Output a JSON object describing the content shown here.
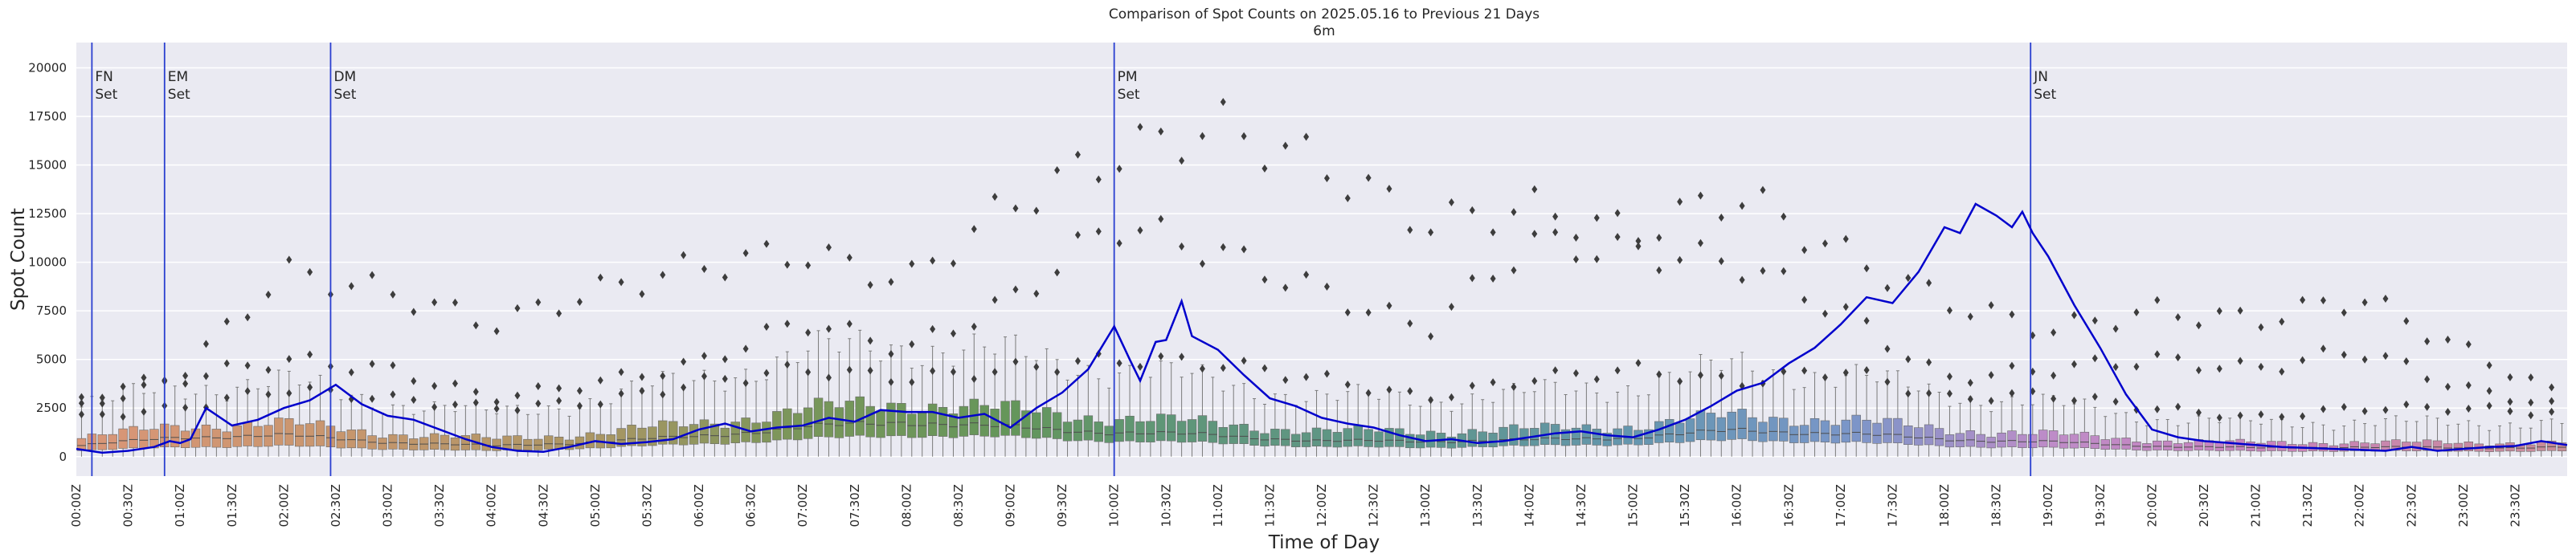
{
  "chart_data": {
    "type": "box+line",
    "title": "Comparison of Spot Counts on 2025.05.16 to Previous 21 Days",
    "subtitle": "6m",
    "xlabel": "Time of Day",
    "ylabel": "Spot Count",
    "ylim": [
      -1000,
      21300
    ],
    "y_ticks": [
      0,
      2500,
      5000,
      7500,
      10000,
      12500,
      15000,
      17500,
      20000
    ],
    "y_tick_labels": [
      "0",
      "2500",
      "5000",
      "7500",
      "10000",
      "12500",
      "15000",
      "17500",
      "20000"
    ],
    "x_range_hours": [
      0,
      24
    ],
    "x_tick_labels": [
      "00:00Z",
      "00:30Z",
      "01:00Z",
      "01:30Z",
      "02:00Z",
      "02:30Z",
      "03:00Z",
      "03:30Z",
      "04:00Z",
      "04:30Z",
      "05:00Z",
      "05:30Z",
      "06:00Z",
      "06:30Z",
      "07:00Z",
      "07:30Z",
      "08:00Z",
      "08:30Z",
      "09:00Z",
      "09:30Z",
      "10:00Z",
      "10:30Z",
      "11:00Z",
      "11:30Z",
      "12:00Z",
      "12:30Z",
      "13:00Z",
      "13:30Z",
      "14:00Z",
      "14:30Z",
      "15:00Z",
      "15:30Z",
      "16:00Z",
      "16:30Z",
      "17:00Z",
      "17:30Z",
      "18:00Z",
      "18:30Z",
      "19:00Z",
      "19:30Z",
      "20:00Z",
      "20:30Z",
      "21:00Z",
      "21:30Z",
      "22:00Z",
      "22:30Z",
      "23:00Z",
      "23:30Z"
    ],
    "grid": true,
    "background_color": "#eaeaf2",
    "line_color": "#0000cc",
    "event_line_color": "#2a3fd0",
    "flier_color": "#3d3d3d",
    "events": [
      {
        "label": "FN\nSet",
        "hour": 0.15
      },
      {
        "label": "EM\nSet",
        "hour": 0.85
      },
      {
        "label": "DM\nSet",
        "hour": 2.45
      },
      {
        "label": "PM\nSet",
        "hour": 10.0
      },
      {
        "label": "JN\nSet",
        "hour": 18.83
      }
    ],
    "box_summary_by_hour": {
      "hours": [
        0,
        1,
        2,
        3,
        4,
        5,
        6,
        7,
        8,
        9,
        10,
        11,
        12,
        13,
        14,
        15,
        16,
        17,
        18,
        19,
        20,
        21,
        22,
        23,
        24
      ],
      "median": [
        550,
        1000,
        1100,
        750,
        550,
        750,
        1050,
        1500,
        1800,
        1500,
        1250,
        1100,
        800,
        800,
        850,
        1000,
        1350,
        1200,
        900,
        750,
        550,
        450,
        500,
        450,
        500
      ],
      "q1": [
        300,
        500,
        550,
        400,
        300,
        450,
        650,
        900,
        1100,
        1000,
        800,
        700,
        500,
        480,
        550,
        650,
        850,
        750,
        550,
        450,
        350,
        280,
        300,
        280,
        300
      ],
      "q3": [
        900,
        1600,
        1700,
        1200,
        900,
        1200,
        1700,
        2400,
        2800,
        2400,
        2000,
        1700,
        1300,
        1300,
        1400,
        1600,
        2100,
        1900,
        1400,
        1150,
        850,
        700,
        750,
        700,
        750
      ],
      "whisker": [
        2500,
        3600,
        3800,
        2800,
        2200,
        2900,
        4000,
        5200,
        5800,
        5200,
        4500,
        3800,
        3000,
        3000,
        3200,
        3700,
        4600,
        4200,
        3200,
        2700,
        2000,
        1700,
        1800,
        1700,
        1800
      ]
    },
    "series": [
      {
        "name": "2025.05.16",
        "x": [
          0,
          0.25,
          0.5,
          0.75,
          0.9,
          1.0,
          1.1,
          1.25,
          1.5,
          1.75,
          2.0,
          2.25,
          2.5,
          2.75,
          3.0,
          3.25,
          3.5,
          3.75,
          4.0,
          4.25,
          4.5,
          4.75,
          5.0,
          5.25,
          5.5,
          5.75,
          6.0,
          6.25,
          6.5,
          6.75,
          7.0,
          7.25,
          7.5,
          7.75,
          8.0,
          8.25,
          8.5,
          8.75,
          9.0,
          9.25,
          9.5,
          9.75,
          10.0,
          10.15,
          10.25,
          10.4,
          10.5,
          10.65,
          10.75,
          11.0,
          11.25,
          11.5,
          11.75,
          12.0,
          12.25,
          12.5,
          12.75,
          13.0,
          13.25,
          13.5,
          13.75,
          14.0,
          14.25,
          14.5,
          14.75,
          15.0,
          15.25,
          15.5,
          15.75,
          16.0,
          16.25,
          16.5,
          16.75,
          17.0,
          17.25,
          17.5,
          17.75,
          18.0,
          18.15,
          18.3,
          18.5,
          18.65,
          18.75,
          18.85,
          19.0,
          19.25,
          19.5,
          19.75,
          20.0,
          20.25,
          20.5,
          20.75,
          21.0,
          21.25,
          21.5,
          21.75,
          22.0,
          22.25,
          22.5,
          22.75,
          23.0,
          23.25,
          23.5,
          23.75,
          24.0
        ],
        "y": [
          400,
          200,
          300,
          500,
          800,
          700,
          900,
          2500,
          1600,
          1900,
          2500,
          2900,
          3700,
          2700,
          2100,
          1900,
          1400,
          900,
          500,
          300,
          250,
          500,
          800,
          650,
          750,
          900,
          1400,
          1700,
          1300,
          1500,
          1600,
          2000,
          1800,
          2400,
          2300,
          2300,
          2000,
          2200,
          1500,
          2500,
          3300,
          4500,
          6700,
          5000,
          3900,
          5900,
          6000,
          8000,
          6200,
          5500,
          4200,
          3000,
          2600,
          2000,
          1700,
          1500,
          1100,
          800,
          900,
          700,
          800,
          1000,
          1200,
          1300,
          1100,
          1000,
          1400,
          1900,
          2600,
          3400,
          3800,
          4800,
          5600,
          6800,
          8200,
          7900,
          9500,
          11800,
          11500,
          13000,
          12400,
          11800,
          12600,
          11500,
          10300,
          7800,
          5600,
          3200,
          1400,
          1000,
          800,
          700,
          600,
          500,
          450,
          400,
          350,
          300,
          500,
          300,
          400,
          500,
          550,
          800,
          600
        ]
      }
    ],
    "outlier_bands": [
      {
        "x": [
          0,
          1,
          2,
          3,
          4,
          5,
          6,
          7,
          8,
          9,
          10,
          11,
          12,
          13,
          14,
          15,
          16,
          17,
          18,
          19,
          20,
          21,
          22,
          23,
          24
        ],
        "y": [
          3000,
          4200,
          9500,
          8500,
          6800,
          8500,
          9800,
          10500,
          9000,
          13000,
          15500,
          17000,
          15000,
          12000,
          12800,
          11500,
          13500,
          10500,
          8000,
          6500,
          7500,
          7000,
          8200,
          5500,
          3000
        ]
      },
      {
        "x": [
          0,
          1,
          2,
          3,
          4,
          5,
          6,
          7,
          8,
          9,
          10,
          11,
          12,
          13,
          14,
          15,
          16,
          17,
          18,
          19,
          20,
          21,
          22,
          23,
          24
        ],
        "y": [
          2500,
          4000,
          5000,
          4500,
          3000,
          3800,
          4800,
          7000,
          5500,
          8000,
          12000,
          10500,
          8500,
          6500,
          11000,
          10500,
          10000,
          7500,
          4000,
          4500,
          5000,
          4500,
          5500,
          3500,
          2500
        ]
      },
      {
        "x": [
          0,
          1,
          2,
          3,
          4,
          5,
          6,
          7,
          8,
          9,
          10,
          11,
          12,
          13,
          14,
          15,
          16,
          17,
          18,
          19,
          20,
          21,
          22,
          23,
          24
        ],
        "y": [
          2000,
          2500,
          3500,
          3000,
          2500,
          2800,
          3800,
          4500,
          4000,
          4500,
          5000,
          4800,
          4000,
          3000,
          4000,
          4500,
          3800,
          4500,
          3000,
          3200,
          2500,
          2000,
          2500,
          2500,
          2200
        ]
      }
    ]
  }
}
